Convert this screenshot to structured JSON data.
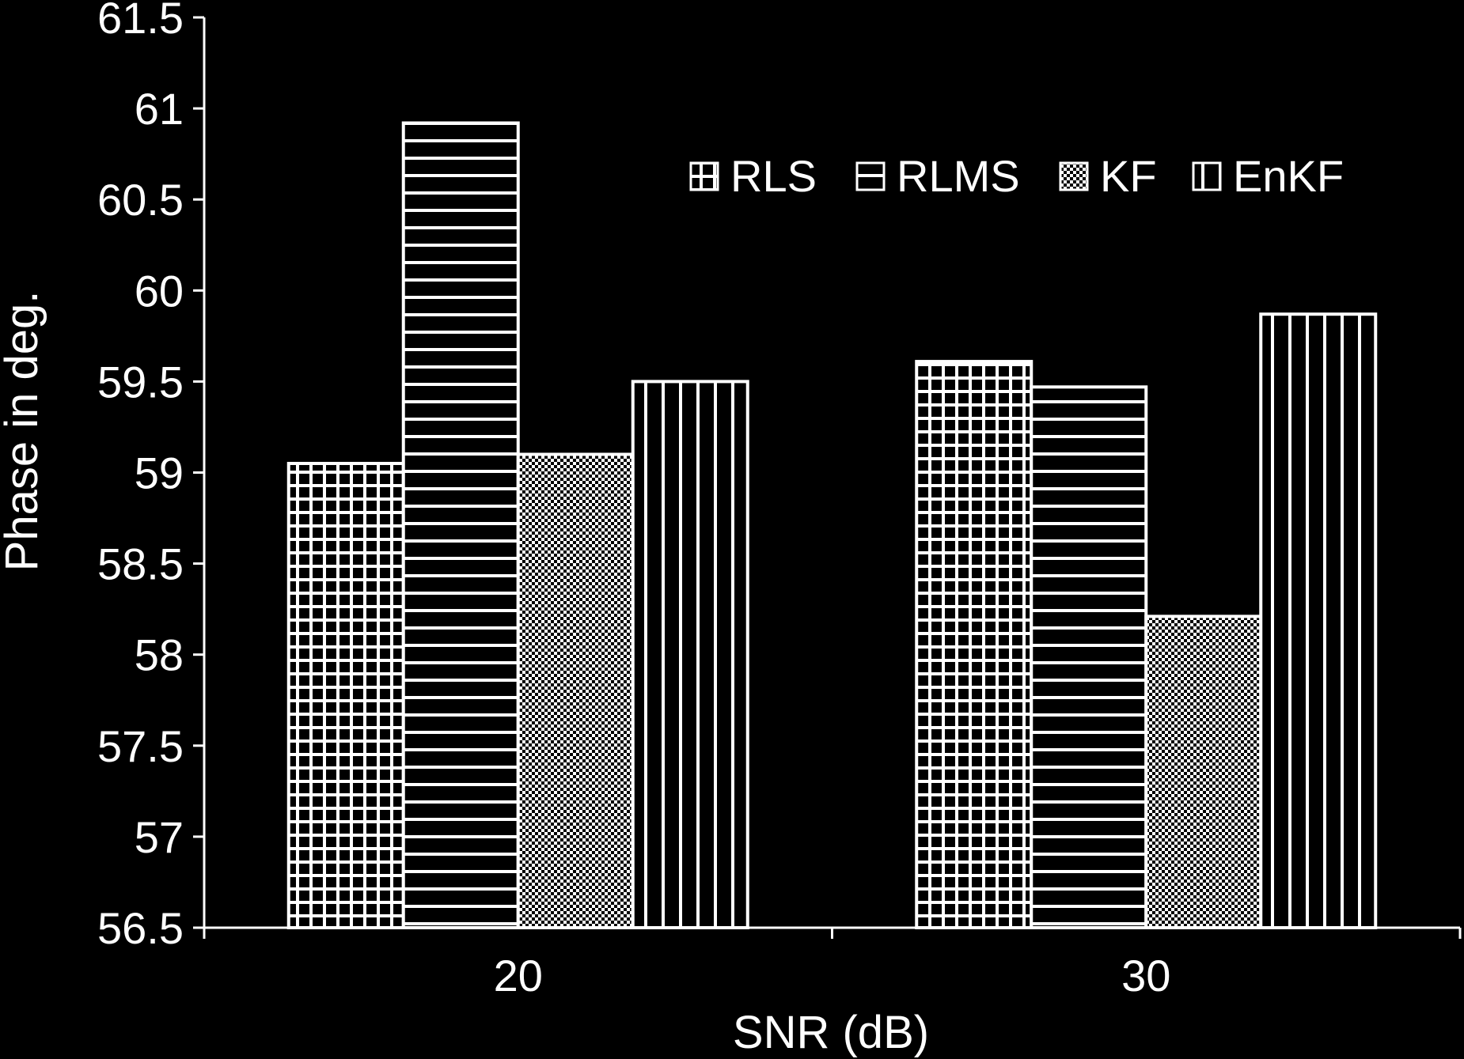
{
  "chart_data": {
    "type": "bar",
    "title": "",
    "xlabel": "SNR (dB)",
    "ylabel": "Phase in deg.",
    "categories": [
      "20",
      "30"
    ],
    "ylim": [
      56.5,
      61.5
    ],
    "yticks": [
      "61.5",
      "61",
      "60.5",
      "60",
      "59.5",
      "59",
      "58.5",
      "58",
      "57.5",
      "57",
      "56.5"
    ],
    "series": [
      {
        "name": "RLS",
        "values": [
          59.05,
          59.61
        ],
        "pattern": "grid"
      },
      {
        "name": "RLMS",
        "values": [
          60.92,
          59.47
        ],
        "pattern": "horizontal"
      },
      {
        "name": "KF",
        "values": [
          59.1,
          58.21
        ],
        "pattern": "checker"
      },
      {
        "name": "EnKF",
        "values": [
          59.5,
          59.87
        ],
        "pattern": "vertical"
      }
    ],
    "legend_position": "top-right",
    "grid": false,
    "colors": {
      "background": "#000000",
      "foreground": "#ffffff"
    }
  }
}
